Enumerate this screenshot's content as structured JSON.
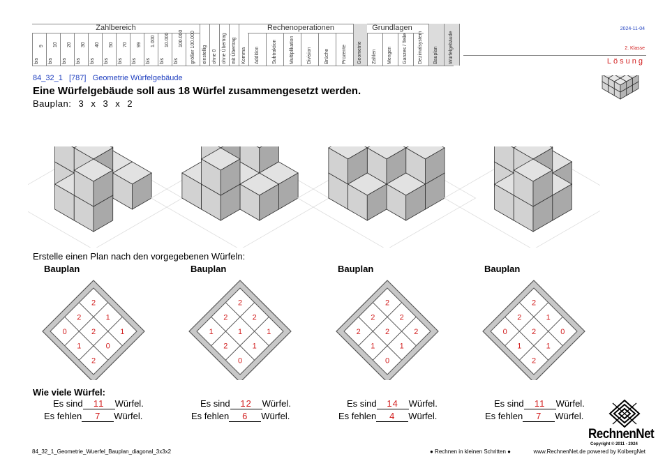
{
  "header": {
    "groups": [
      {
        "key": "zahlbereich",
        "label": "Zahlbereich"
      },
      {
        "key": "rechen",
        "label": "Rechenoperationen"
      },
      {
        "key": "grundlagen",
        "label": "Grundlagen"
      }
    ],
    "zahlbereich_cols": [
      {
        "top": "9",
        "bottom": "bis"
      },
      {
        "top": "10",
        "bottom": "bis"
      },
      {
        "top": "20",
        "bottom": "bis"
      },
      {
        "top": "30",
        "bottom": "bis"
      },
      {
        "top": "40",
        "bottom": "bis"
      },
      {
        "top": "50",
        "bottom": "bis"
      },
      {
        "top": "70",
        "bottom": "bis"
      },
      {
        "top": "99",
        "bottom": "bis"
      },
      {
        "top": "1.000",
        "bottom": "bis"
      },
      {
        "top": "10.000",
        "bottom": "bis"
      },
      {
        "top": "100.000",
        "bottom": "bis"
      },
      {
        "top": "größer 100.000",
        "bottom": ""
      }
    ],
    "stellen_cols": [
      "einstellig",
      "ohne 0",
      "ohne Übertrag",
      "mit Übertrag",
      "Komma"
    ],
    "rechen_cols": [
      "Addition",
      "Subtraktion",
      "Multiplikation",
      "Division",
      "Brüche",
      "Prozente"
    ],
    "geometrie_col": "Geometrie",
    "grundlagen_cols": [
      "Zahlen",
      "Mengen",
      "Ganzes / Teile",
      "Dezimalsystem"
    ],
    "extra_cols": [
      "Bauplan",
      "Würfelgebäude"
    ],
    "date": "2024-11-04",
    "klasse": "2. Klasse",
    "solution_label": "Lösung"
  },
  "task": {
    "code": "84_32_1",
    "number": "[787]",
    "topic": "Geometrie Würfelgebäude",
    "title": "Eine Würfelgebäude soll aus 18 Würfel zusammengesetzt werden.",
    "bauplan_label": "Bauplan:",
    "dims": [
      "3",
      "x",
      "3",
      "x",
      "2"
    ]
  },
  "instruction": "Erstelle einen Plan nach den vorgegebenen Würfeln:",
  "plan_heading": "Bauplan",
  "plans": [
    {
      "grid": [
        [
          2,
          1,
          1
        ],
        [
          2,
          2,
          0
        ],
        [
          0,
          1,
          2
        ]
      ],
      "count": "11",
      "missing": "7"
    },
    {
      "grid": [
        [
          2,
          2,
          1
        ],
        [
          2,
          1,
          1
        ],
        [
          1,
          2,
          0
        ]
      ],
      "count": "12",
      "missing": "6"
    },
    {
      "grid": [
        [
          2,
          2,
          2
        ],
        [
          2,
          2,
          1
        ],
        [
          2,
          1,
          0
        ]
      ],
      "count": "14",
      "missing": "4"
    },
    {
      "grid": [
        [
          2,
          1,
          0
        ],
        [
          2,
          2,
          1
        ],
        [
          0,
          1,
          2
        ]
      ],
      "count": "11",
      "missing": "7"
    }
  ],
  "question": "Wie viele Würfel:",
  "answer_labels": {
    "sind": "Es sind",
    "fehlen": "Es fehlen",
    "unit": "Würfel."
  },
  "footer": {
    "filename": "84_32_1_Geometrie_Wuerfel_Bauplan_diagonal_3x3x2",
    "slogan": "● Rechnen in kleinen Schritten ●",
    "site": "www.RechnenNet.de powered by KolbergNet",
    "brand": "RechnenNet",
    "copyright": "Copyright © 2011 - 2024"
  },
  "colors": {
    "answer": "#d21e1e",
    "link": "#1f3fbf",
    "cube_top": "#e2e2e2",
    "cube_front": "#d2d2d2",
    "cube_side": "#a9a9a9"
  }
}
